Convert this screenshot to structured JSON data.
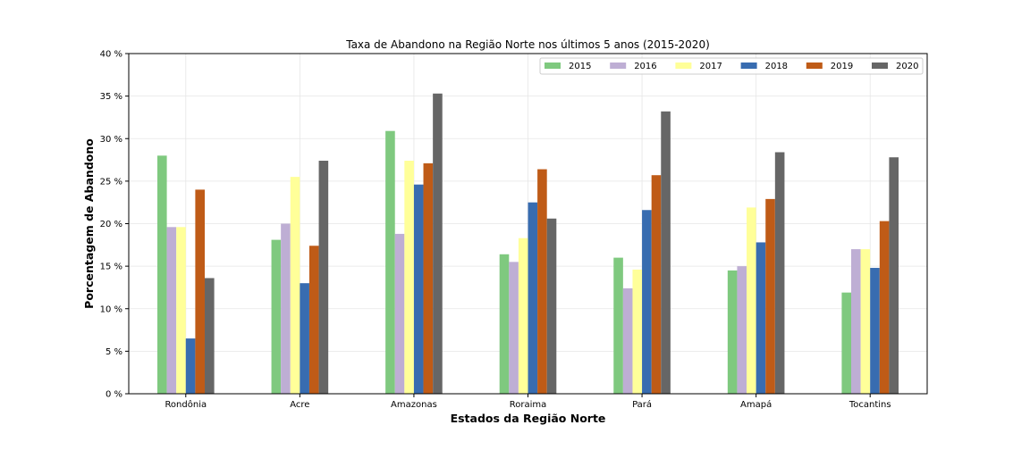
{
  "chart_data": {
    "type": "bar",
    "title": "Taxa de Abandono na Região Norte nos últimos 5 anos (2015-2020)",
    "xlabel": "Estados da Região Norte",
    "ylabel": "Porcentagem de Abandono",
    "ylim": [
      0,
      40
    ],
    "yticks": [
      "0 %",
      "5 %",
      "10 %",
      "15 %",
      "20 %",
      "25 %",
      "30 %",
      "35 %",
      "40 %"
    ],
    "grid": true,
    "legend_position": "top-right",
    "categories": [
      "Rondônia",
      "Acre",
      "Amazonas",
      "Roraima",
      "Pará",
      "Amapá",
      "Tocantins"
    ],
    "series": [
      {
        "name": "2015",
        "color": "#7fc97f",
        "values": [
          28.0,
          18.1,
          30.9,
          16.4,
          16.0,
          14.5,
          11.9
        ]
      },
      {
        "name": "2016",
        "color": "#beaed4",
        "values": [
          19.6,
          20.0,
          18.8,
          15.5,
          12.4,
          15.0,
          17.0
        ]
      },
      {
        "name": "2017",
        "color": "#ffff99",
        "values": [
          19.6,
          25.5,
          27.4,
          18.3,
          14.6,
          21.9,
          17.0
        ]
      },
      {
        "name": "2018",
        "color": "#386cb0",
        "values": [
          6.5,
          13.0,
          24.6,
          22.5,
          21.6,
          17.8,
          14.8
        ]
      },
      {
        "name": "2019",
        "color": "#bf5b17",
        "values": [
          24.0,
          17.4,
          27.1,
          26.4,
          25.7,
          22.9,
          20.3
        ]
      },
      {
        "name": "2020",
        "color": "#666666",
        "values": [
          13.6,
          27.4,
          35.3,
          20.6,
          33.2,
          28.4,
          27.8
        ]
      }
    ]
  }
}
